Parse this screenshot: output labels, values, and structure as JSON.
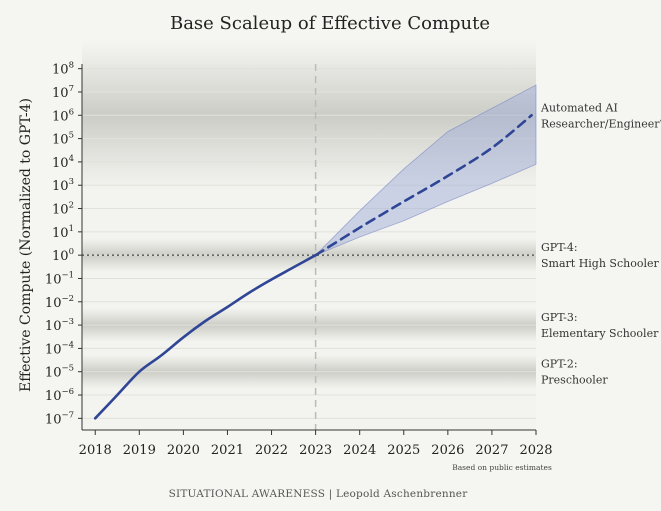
{
  "chart_data": {
    "type": "line",
    "title": "Base Scaleup of Effective Compute",
    "xlabel": "",
    "ylabel": "Effective Compute (Normalized to GPT-4)",
    "ylim_log10": [
      -7.5,
      8.2
    ],
    "y_scale": "log",
    "xlim": [
      2017.7,
      2028
    ],
    "x_ticks": [
      "2018",
      "2019",
      "2020",
      "2021",
      "2022",
      "2023",
      "2024",
      "2025",
      "2026",
      "2027",
      "2028"
    ],
    "y_ticks": [
      {
        "base": "10",
        "exp": "8"
      },
      {
        "base": "10",
        "exp": "7"
      },
      {
        "base": "10",
        "exp": "6"
      },
      {
        "base": "10",
        "exp": "5"
      },
      {
        "base": "10",
        "exp": "4"
      },
      {
        "base": "10",
        "exp": "3"
      },
      {
        "base": "10",
        "exp": "2"
      },
      {
        "base": "10",
        "exp": "1"
      },
      {
        "base": "10",
        "exp": "0"
      },
      {
        "base": "10",
        "exp": "-1"
      },
      {
        "base": "10",
        "exp": "-2"
      },
      {
        "base": "10",
        "exp": "-3"
      },
      {
        "base": "10",
        "exp": "-4"
      },
      {
        "base": "10",
        "exp": "-5"
      },
      {
        "base": "10",
        "exp": "-6"
      },
      {
        "base": "10",
        "exp": "-7"
      }
    ],
    "grid": true,
    "series": [
      {
        "style": "solid",
        "color": "#2f4596",
        "x": [
          2018.0,
          2018.5,
          2019.0,
          2019.5,
          2020.0,
          2020.5,
          2021.0,
          2021.5,
          2022.0,
          2022.5,
          2023.0
        ],
        "y": [
          1e-07,
          1e-06,
          1e-05,
          5e-05,
          0.0003,
          0.0015,
          0.006,
          0.025,
          0.09,
          0.3,
          1
        ]
      },
      {
        "style": "dashed",
        "color": "#2f4596",
        "x": [
          2023,
          2024,
          2025,
          2026,
          2027,
          2027.9
        ],
        "y": [
          1,
          15,
          200,
          2500,
          40000,
          1000000
        ]
      }
    ],
    "band": {
      "color": "#9aa8d6",
      "x": [
        2023,
        2024,
        2025,
        2026,
        2027,
        2028
      ],
      "upper": [
        1,
        80,
        5000,
        200000,
        2000000,
        20000000
      ],
      "lower": [
        1,
        6,
        30,
        200,
        1200,
        8000
      ]
    },
    "reference_lines": [
      {
        "axis": "y",
        "value": 1,
        "style": "dotted",
        "color": "#666666"
      },
      {
        "axis": "x",
        "value": 2023,
        "style": "dashed",
        "color": "#bbbbbb"
      }
    ],
    "annotations": [
      {
        "lines": [
          "Automated AI",
          "Researcher/Engineer?"
        ],
        "y": 1000000
      },
      {
        "lines": [
          "GPT-4:",
          "Smart High Schooler"
        ],
        "y": 1
      },
      {
        "lines": [
          "GPT-3:",
          "Elementary Schooler"
        ],
        "y": 0.001
      },
      {
        "lines": [
          "GPT-2:",
          "Preschooler"
        ],
        "y": 1e-05
      }
    ],
    "note": "Based on public estimates",
    "credit": "SITUATIONAL AWARENESS | Leopold Aschenbrenner"
  }
}
